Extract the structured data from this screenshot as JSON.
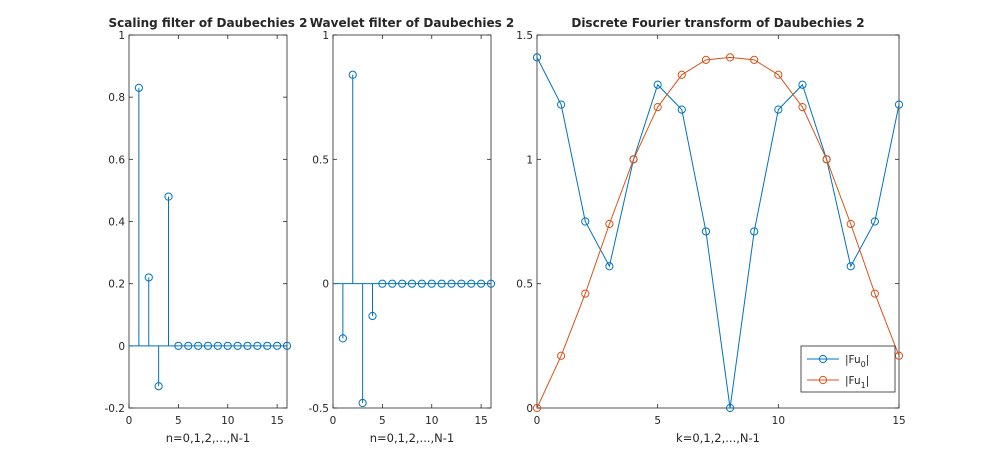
{
  "chart_data": [
    {
      "type": "stem",
      "title": "Scaling filter of Daubechies 2",
      "xlabel": "n=0,1,2,...,N-1",
      "ylabel": "",
      "xlim": [
        0,
        16
      ],
      "ylim": [
        -0.2,
        1
      ],
      "xticks": [
        "0",
        "5",
        "10",
        "15"
      ],
      "yticks": [
        "-0.2",
        "0",
        "0.2",
        "0.4",
        "0.6",
        "0.8",
        "1"
      ],
      "color": "#0072BD",
      "x": [
        1,
        2,
        3,
        4,
        5,
        6,
        7,
        8,
        9,
        10,
        11,
        12,
        13,
        14,
        15,
        16
      ],
      "values": [
        0.83,
        0.22,
        -0.13,
        0.48,
        0,
        0,
        0,
        0,
        0,
        0,
        0,
        0,
        0,
        0,
        0,
        0
      ]
    },
    {
      "type": "stem",
      "title": "Wavelet filter of Daubechies 2",
      "xlabel": "n=0,1,2,...,N-1",
      "ylabel": "",
      "xlim": [
        0,
        16
      ],
      "ylim": [
        -0.5,
        1
      ],
      "xticks": [
        "0",
        "5",
        "10",
        "15"
      ],
      "yticks": [
        "-0.5",
        "0",
        "0.5",
        "1"
      ],
      "color": "#0072BD",
      "x": [
        1,
        2,
        3,
        4,
        5,
        6,
        7,
        8,
        9,
        10,
        11,
        12,
        13,
        14,
        15,
        16
      ],
      "values": [
        -0.22,
        0.84,
        -0.48,
        -0.13,
        0,
        0,
        0,
        0,
        0,
        0,
        0,
        0,
        0,
        0,
        0,
        0
      ]
    },
    {
      "type": "line",
      "title": "Discrete Fourier transform of Daubechies 2",
      "xlabel": "k=0,1,2,...,N-1",
      "ylabel": "",
      "xlim": [
        0,
        15
      ],
      "ylim": [
        0,
        1.5
      ],
      "xticks": [
        "0",
        "5",
        "10",
        "15"
      ],
      "yticks": [
        "0",
        "0.5",
        "1",
        "1.5"
      ],
      "legend_position": "bottom-right",
      "x": [
        0,
        1,
        2,
        3,
        4,
        5,
        6,
        7,
        8,
        9,
        10,
        11,
        12,
        13,
        14,
        15
      ],
      "series": [
        {
          "name": "|Fu",
          "subscript": "0",
          "name_suffix": "|",
          "color": "#0072BD",
          "values": [
            1.41,
            1.22,
            0.75,
            0.57,
            1.0,
            1.3,
            1.2,
            0.71,
            0.0,
            0.71,
            1.2,
            1.3,
            1.0,
            0.57,
            0.75,
            1.22
          ]
        },
        {
          "name": "|Fu",
          "subscript": "1",
          "name_suffix": "|",
          "color": "#D95319",
          "values": [
            0.0,
            0.21,
            0.46,
            0.74,
            1.0,
            1.21,
            1.34,
            1.4,
            1.41,
            1.4,
            1.34,
            1.21,
            1.0,
            0.74,
            0.46,
            0.21
          ]
        }
      ]
    }
  ]
}
